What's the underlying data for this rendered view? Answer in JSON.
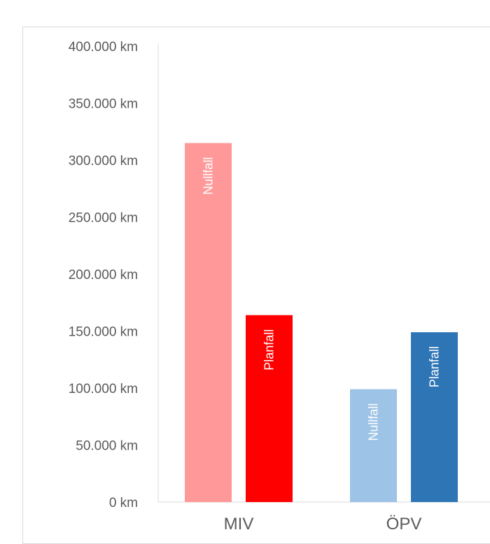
{
  "chart_data": {
    "type": "bar",
    "categories": [
      "MIV",
      "ÖPV"
    ],
    "yticks": [
      "0 km",
      "50.000 km",
      "100.000 km",
      "150.000 km",
      "200.000 km",
      "250.000 km",
      "300.000 km",
      "350.000 km",
      "400.000 km"
    ],
    "ylim": [
      0,
      400000
    ],
    "grid": false,
    "legend": "none",
    "series": [
      {
        "label": "Nullfall",
        "values": [
          315000,
          99000
        ],
        "colors": [
          "#ff9999",
          "#9dc3e6"
        ]
      },
      {
        "label": "Planfall",
        "values": [
          164000,
          149000
        ],
        "colors": [
          "#ff0000",
          "#2e75b6"
        ]
      }
    ]
  }
}
